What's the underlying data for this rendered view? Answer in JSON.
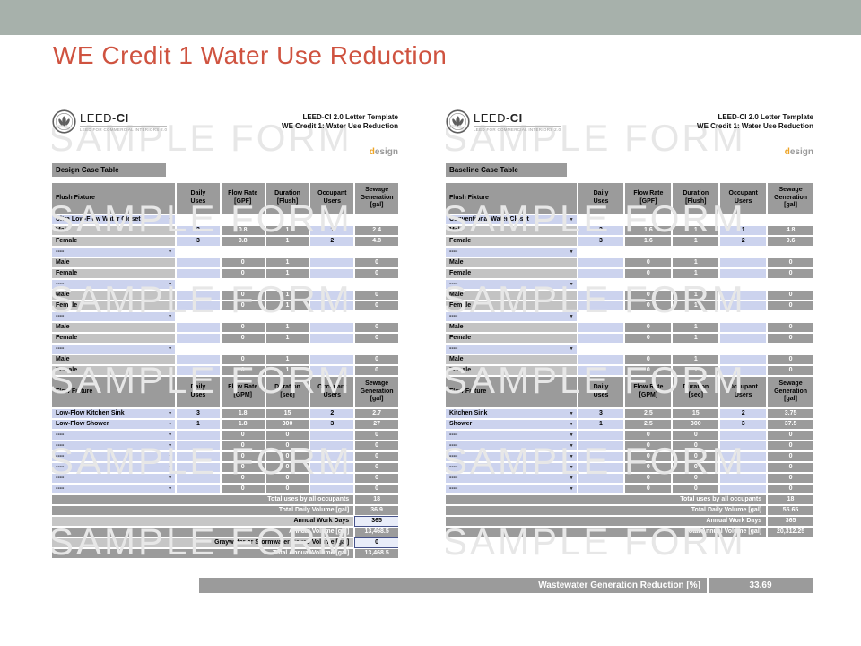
{
  "slide": {
    "title": "WE Credit 1 Water Use Reduction",
    "colors": {
      "top_bar": "#a7b1ab",
      "title": "#cf5340",
      "cell_gray": "#9b9b9b",
      "cell_silver": "#c3c3c3",
      "cell_lavender": "#ccd3ee",
      "design_mark_accent": "#eda426"
    }
  },
  "watermark": "SAMPLE FORM",
  "reduction_bar": {
    "label": "Wastewater Generation Reduction [%]",
    "value": "33.69"
  },
  "forms": [
    {
      "logo": {
        "brand_light": "LEED-",
        "brand_bold": "CI",
        "sub": "LEED FOR COMMERCIAL INTERIORS 2.0"
      },
      "header_lines": [
        "LEED-CI 2.0 Letter Template",
        "WE Credit 1: Water Use Reduction"
      ],
      "design_mark": {
        "d": "d",
        "rest": "esign"
      },
      "case_label": "Design Case Table",
      "flush": {
        "label": "Flush Fixture",
        "columns": [
          "Daily\nUses",
          "Flow Rate\n[GPF]",
          "Duration\n[Flush]",
          "Occupant\nUsers",
          "Sewage\nGeneration\n[gal]"
        ],
        "groups": [
          {
            "fixture": "Ultra Low-Flow Water Closet",
            "rows": [
              {
                "label": "Male",
                "uses": "3",
                "flow": "0.8",
                "dur": "1",
                "occ": "1",
                "sew": "2.4"
              },
              {
                "label": "Female",
                "uses": "3",
                "flow": "0.8",
                "dur": "1",
                "occ": "2",
                "sew": "4.8"
              }
            ]
          },
          {
            "fixture": "----",
            "rows": [
              {
                "label": "Male",
                "uses": "",
                "flow": "0",
                "dur": "1",
                "occ": "",
                "sew": "0"
              },
              {
                "label": "Female",
                "uses": "",
                "flow": "0",
                "dur": "1",
                "occ": "",
                "sew": "0"
              }
            ]
          },
          {
            "fixture": "----",
            "rows": [
              {
                "label": "Male",
                "uses": "",
                "flow": "0",
                "dur": "1",
                "occ": "",
                "sew": "0"
              },
              {
                "label": "Female",
                "uses": "",
                "flow": "0",
                "dur": "1",
                "occ": "",
                "sew": "0"
              }
            ]
          },
          {
            "fixture": "----",
            "rows": [
              {
                "label": "Male",
                "uses": "",
                "flow": "0",
                "dur": "1",
                "occ": "",
                "sew": "0"
              },
              {
                "label": "Female",
                "uses": "",
                "flow": "0",
                "dur": "1",
                "occ": "",
                "sew": "0"
              }
            ]
          },
          {
            "fixture": "----",
            "rows": [
              {
                "label": "Male",
                "uses": "",
                "flow": "0",
                "dur": "1",
                "occ": "",
                "sew": "0"
              },
              {
                "label": "Female",
                "uses": "",
                "flow": "0",
                "dur": "1",
                "occ": "",
                "sew": "0"
              }
            ]
          }
        ]
      },
      "flow": {
        "label": "Flow Fixture",
        "columns": [
          "Daily\nUses",
          "Flow Rate\n[GPM]",
          "Duration\n[sec]",
          "Occupant\nUsers",
          "Sewage\nGeneration\n[gal]"
        ],
        "rows": [
          {
            "fixture": "Low-Flow Kitchen Sink",
            "uses": "3",
            "flow": "1.8",
            "dur": "15",
            "occ": "2",
            "sew": "2.7"
          },
          {
            "fixture": "Low-Flow Shower",
            "uses": "1",
            "flow": "1.8",
            "dur": "300",
            "occ": "3",
            "sew": "27"
          },
          {
            "fixture": "----",
            "uses": "",
            "flow": "0",
            "dur": "0",
            "occ": "",
            "sew": "0"
          },
          {
            "fixture": "----",
            "uses": "",
            "flow": "0",
            "dur": "0",
            "occ": "",
            "sew": "0"
          },
          {
            "fixture": "----",
            "uses": "",
            "flow": "0",
            "dur": "0",
            "occ": "",
            "sew": "0"
          },
          {
            "fixture": "----",
            "uses": "",
            "flow": "0",
            "dur": "0",
            "occ": "",
            "sew": "0"
          },
          {
            "fixture": "----",
            "uses": "",
            "flow": "0",
            "dur": "0",
            "occ": "",
            "sew": "0"
          },
          {
            "fixture": "----",
            "uses": "",
            "flow": "0",
            "dur": "0",
            "occ": "",
            "sew": "0"
          }
        ]
      },
      "totals": [
        {
          "label": "Total uses by all occupants",
          "value": "18",
          "input": false
        },
        {
          "label": "Total Daily Volume [gal]",
          "value": "36.9",
          "input": false
        },
        {
          "label": "Annual Work Days",
          "value": "365",
          "input": true
        },
        {
          "label": "Annual Volume [gal]",
          "value": "13,468.5",
          "input": false
        },
        {
          "label": "Graywater or Stormwater Reuse Volume [gal]",
          "value": "0",
          "input": true
        },
        {
          "label": "Total Annual Volume [gal]",
          "value": "13,468.5",
          "input": false
        }
      ]
    },
    {
      "logo": {
        "brand_light": "LEED-",
        "brand_bold": "CI",
        "sub": "LEED FOR COMMERCIAL INTERIORS 2.0"
      },
      "header_lines": [
        "LEED-CI 2.0 Letter Template",
        "WE Credit 1: Water Use Reduction"
      ],
      "design_mark": {
        "d": "d",
        "rest": "esign"
      },
      "case_label": "Baseline Case Table",
      "flush": {
        "label": "Flush Fixture",
        "columns": [
          "Daily\nUses",
          "Flow Rate\n[GPF]",
          "Duration\n[Flush]",
          "Occupant\nUsers",
          "Sewage\nGeneration\n[gal]"
        ],
        "groups": [
          {
            "fixture": "Conventional Water Closet",
            "rows": [
              {
                "label": "Male",
                "uses": "3",
                "flow": "1.6",
                "dur": "1",
                "occ": "1",
                "sew": "4.8"
              },
              {
                "label": "Female",
                "uses": "3",
                "flow": "1.6",
                "dur": "1",
                "occ": "2",
                "sew": "9.6"
              }
            ]
          },
          {
            "fixture": "----",
            "rows": [
              {
                "label": "Male",
                "uses": "",
                "flow": "0",
                "dur": "1",
                "occ": "",
                "sew": "0"
              },
              {
                "label": "Female",
                "uses": "",
                "flow": "0",
                "dur": "1",
                "occ": "",
                "sew": "0"
              }
            ]
          },
          {
            "fixture": "----",
            "rows": [
              {
                "label": "Male",
                "uses": "",
                "flow": "0",
                "dur": "1",
                "occ": "",
                "sew": "0"
              },
              {
                "label": "Female",
                "uses": "",
                "flow": "0",
                "dur": "1",
                "occ": "",
                "sew": "0"
              }
            ]
          },
          {
            "fixture": "----",
            "rows": [
              {
                "label": "Male",
                "uses": "",
                "flow": "0",
                "dur": "1",
                "occ": "",
                "sew": "0"
              },
              {
                "label": "Female",
                "uses": "",
                "flow": "0",
                "dur": "1",
                "occ": "",
                "sew": "0"
              }
            ]
          },
          {
            "fixture": "----",
            "rows": [
              {
                "label": "Male",
                "uses": "",
                "flow": "0",
                "dur": "1",
                "occ": "",
                "sew": "0"
              },
              {
                "label": "Female",
                "uses": "",
                "flow": "0",
                "dur": "1",
                "occ": "",
                "sew": "0"
              }
            ]
          }
        ]
      },
      "flow": {
        "label": "Flow Fixture",
        "columns": [
          "Daily\nUses",
          "Flow Rate\n[GPM]",
          "Duration\n[sec]",
          "Occupant\nUsers",
          "Sewage\nGeneration\n[gal]"
        ],
        "rows": [
          {
            "fixture": "Kitchen Sink",
            "uses": "3",
            "flow": "2.5",
            "dur": "15",
            "occ": "2",
            "sew": "3.75"
          },
          {
            "fixture": "Shower",
            "uses": "1",
            "flow": "2.5",
            "dur": "300",
            "occ": "3",
            "sew": "37.5"
          },
          {
            "fixture": "----",
            "uses": "",
            "flow": "0",
            "dur": "0",
            "occ": "",
            "sew": "0"
          },
          {
            "fixture": "----",
            "uses": "",
            "flow": "0",
            "dur": "0",
            "occ": "",
            "sew": "0"
          },
          {
            "fixture": "----",
            "uses": "",
            "flow": "0",
            "dur": "0",
            "occ": "",
            "sew": "0"
          },
          {
            "fixture": "----",
            "uses": "",
            "flow": "0",
            "dur": "0",
            "occ": "",
            "sew": "0"
          },
          {
            "fixture": "----",
            "uses": "",
            "flow": "0",
            "dur": "0",
            "occ": "",
            "sew": "0"
          },
          {
            "fixture": "----",
            "uses": "",
            "flow": "0",
            "dur": "0",
            "occ": "",
            "sew": "0"
          }
        ]
      },
      "totals": [
        {
          "label": "Total uses by all occupants",
          "value": "18",
          "input": false
        },
        {
          "label": "Total Daily Volume [gal]",
          "value": "55.65",
          "input": false
        },
        {
          "label": "Annual Work Days",
          "value": "365",
          "input": false
        },
        {
          "label": "Total Annual Volume [gal]",
          "value": "20,312.25",
          "input": false
        }
      ]
    }
  ]
}
